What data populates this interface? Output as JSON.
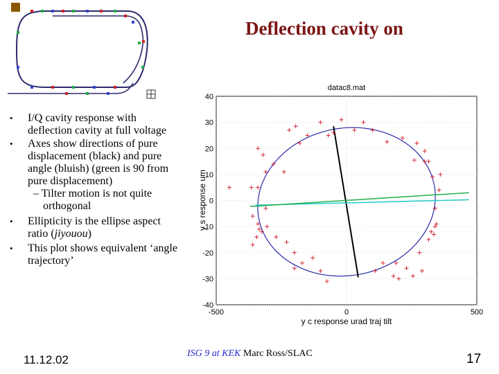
{
  "slide": {
    "title": "Deflection cavity on",
    "date": "11.12.02",
    "footer_event": "ISG 9 at KEK",
    "footer_author": "Marc Ross/SLAC",
    "page_number": "17"
  },
  "bullets": [
    {
      "text": "I/Q cavity response with deflection cavity at full voltage"
    },
    {
      "text": "Axes show directions of pure displacement (black) and pure angle (bluish) (green is 90 from pure displacement)",
      "sub": "– Tilter motion is not quite orthogonal"
    },
    {
      "text_before": "Ellipticity is the ellipse aspect ratio (",
      "text_italic": "jiyouou",
      "text_after": ")"
    },
    {
      "text": "This plot shows equivalent ‘angle trajectory’"
    }
  ],
  "accelerator_icon": {
    "ring_color": "#2b2b6b",
    "marker_colors": [
      "#cc2222",
      "#22aa44",
      "#3344cc"
    ]
  },
  "chart_data": {
    "type": "scatter",
    "title": "datac8.mat",
    "xlabel": "y c response urad traj tilt",
    "ylabel": "y s response um",
    "xlim": [
      -500,
      500
    ],
    "ylim": [
      -40,
      40
    ],
    "xticks": [
      -500,
      0,
      500
    ],
    "yticks": [
      40,
      30,
      20,
      10,
      0,
      -10,
      -20,
      -30,
      -40
    ],
    "grid": true,
    "colors": {
      "points": "#d4283a",
      "ellipse": "#2a2aa6",
      "displacement_axis": "#000000",
      "angle_axis": "#22c8c8",
      "orthogonal_axis": "#22b04a"
    },
    "points": [
      [
        -20,
        31
      ],
      [
        -100,
        30
      ],
      [
        -195,
        28.5
      ],
      [
        -220,
        27
      ],
      [
        -70,
        25
      ],
      [
        -150,
        25
      ],
      [
        -180,
        22
      ],
      [
        -50,
        26
      ],
      [
        30,
        27
      ],
      [
        100,
        27
      ],
      [
        65,
        30
      ],
      [
        215,
        24
      ],
      [
        155,
        22.5
      ],
      [
        270,
        22
      ],
      [
        300,
        19
      ],
      [
        260,
        15.5
      ],
      [
        -340,
        20
      ],
      [
        -320,
        17.5
      ],
      [
        -280,
        14
      ],
      [
        -310,
        11
      ],
      [
        -240,
        11
      ],
      [
        -340,
        5
      ],
      [
        -450,
        5
      ],
      [
        -365,
        5
      ],
      [
        -310,
        -3
      ],
      [
        -360,
        -6
      ],
      [
        -340,
        -9
      ],
      [
        -335,
        -11
      ],
      [
        -325,
        -12
      ],
      [
        -305,
        -10
      ],
      [
        -345,
        -14
      ],
      [
        -360,
        -17
      ],
      [
        -270,
        -14
      ],
      [
        -230,
        -16
      ],
      [
        -200,
        -20
      ],
      [
        -170,
        -24
      ],
      [
        -200,
        -26
      ],
      [
        -130,
        -22
      ],
      [
        -100,
        -27
      ],
      [
        -75,
        -31
      ],
      [
        110,
        -27
      ],
      [
        190,
        -24
      ],
      [
        140,
        -24
      ],
      [
        230,
        -26
      ],
      [
        200,
        -30
      ],
      [
        180,
        -29
      ],
      [
        255,
        -29
      ],
      [
        290,
        -27
      ],
      [
        280,
        -20
      ],
      [
        315,
        -15
      ],
      [
        335,
        -13
      ],
      [
        340,
        -10
      ],
      [
        345,
        -9
      ],
      [
        325,
        -12
      ],
      [
        355,
        4
      ],
      [
        360,
        10
      ],
      [
        315,
        15
      ],
      [
        330,
        9
      ],
      [
        340,
        -3
      ],
      [
        300,
        15
      ]
    ],
    "ellipse_fit": {
      "center": [
        0,
        -0.5
      ],
      "semi_major_um": 28.5,
      "semi_minor_urad": 340,
      "tilt_deg": 4
    },
    "axes_lines": {
      "displacement": [
        [
          -50,
          28.5
        ],
        [
          45,
          -29.5
        ]
      ],
      "angle": [
        [
          -350,
          -1.8
        ],
        [
          470,
          0.3
        ]
      ],
      "orthogonal": [
        [
          -370,
          -2.3
        ],
        [
          470,
          3
        ]
      ]
    }
  }
}
